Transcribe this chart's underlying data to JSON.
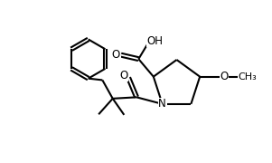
{
  "background_color": "#ffffff",
  "line_color": "#000000",
  "line_width": 1.5,
  "font_size": 8.5,
  "figsize": [
    3.01,
    1.8
  ],
  "dpi": 100,
  "xlim": [
    0,
    10
  ],
  "ylim": [
    0,
    6
  ]
}
